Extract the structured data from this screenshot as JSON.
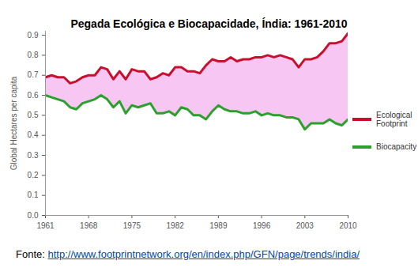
{
  "chart_data": {
    "type": "line",
    "title": "Pegada Ecológica e Biocapacidade, Índia: 1961-2010",
    "y_label": "Global Hectares per capita",
    "source_label": "Fonte:",
    "source_url": "http://www.footprintnetwork.org/en/index.php/GFN/page/trends/india/",
    "x": [
      1961,
      1962,
      1963,
      1964,
      1965,
      1966,
      1967,
      1968,
      1969,
      1970,
      1971,
      1972,
      1973,
      1974,
      1975,
      1976,
      1977,
      1978,
      1979,
      1980,
      1981,
      1982,
      1983,
      1984,
      1985,
      1986,
      1987,
      1988,
      1989,
      1990,
      1991,
      1992,
      1993,
      1994,
      1995,
      1996,
      1997,
      1998,
      1999,
      2000,
      2001,
      2002,
      2003,
      2004,
      2005,
      2006,
      2007,
      2008,
      2009,
      2010
    ],
    "xlim": [
      1961,
      2010
    ],
    "xticks": [
      1961,
      1968,
      1975,
      1982,
      1989,
      1996,
      2003,
      2010
    ],
    "ylim": [
      0,
      0.92
    ],
    "yticks": [
      {
        "value": 0,
        "label": "0.0"
      },
      0.1,
      0.2,
      0.3,
      0.4,
      0.5,
      0.6,
      0.7,
      0.8,
      0.9
    ],
    "grid": false,
    "legend": "right",
    "series": [
      {
        "name": "Ecological Footprint",
        "color": "#c8102e",
        "values": [
          0.69,
          0.7,
          0.69,
          0.69,
          0.66,
          0.67,
          0.69,
          0.7,
          0.7,
          0.74,
          0.73,
          0.68,
          0.72,
          0.68,
          0.73,
          0.72,
          0.72,
          0.68,
          0.69,
          0.71,
          0.7,
          0.74,
          0.74,
          0.72,
          0.72,
          0.71,
          0.75,
          0.78,
          0.77,
          0.77,
          0.79,
          0.77,
          0.78,
          0.78,
          0.79,
          0.79,
          0.8,
          0.79,
          0.8,
          0.79,
          0.78,
          0.74,
          0.78,
          0.78,
          0.79,
          0.82,
          0.86,
          0.86,
          0.87,
          0.91
        ]
      },
      {
        "name": "Biocapacity",
        "color": "#2ca02c",
        "values": [
          0.6,
          0.59,
          0.58,
          0.57,
          0.54,
          0.53,
          0.56,
          0.57,
          0.58,
          0.6,
          0.58,
          0.54,
          0.57,
          0.51,
          0.55,
          0.54,
          0.55,
          0.56,
          0.51,
          0.51,
          0.52,
          0.5,
          0.54,
          0.53,
          0.5,
          0.5,
          0.48,
          0.52,
          0.55,
          0.53,
          0.52,
          0.52,
          0.51,
          0.51,
          0.52,
          0.5,
          0.51,
          0.5,
          0.5,
          0.49,
          0.49,
          0.48,
          0.43,
          0.46,
          0.46,
          0.46,
          0.48,
          0.46,
          0.45,
          0.48
        ]
      }
    ]
  }
}
